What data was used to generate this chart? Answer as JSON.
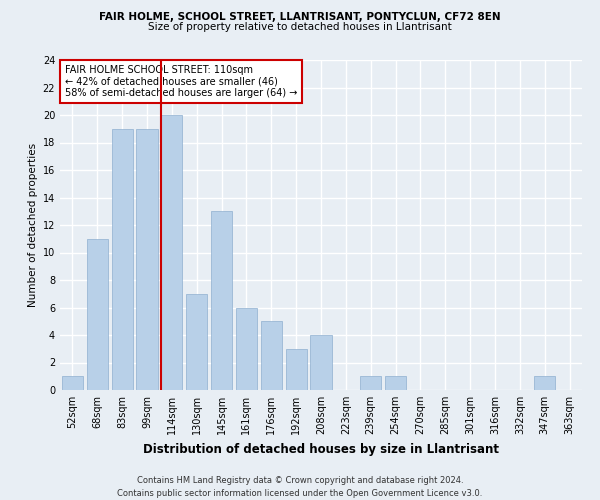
{
  "title_line1": "FAIR HOLME, SCHOOL STREET, LLANTRISANT, PONTYCLUN, CF72 8EN",
  "title_line2": "Size of property relative to detached houses in Llantrisant",
  "xlabel": "Distribution of detached houses by size in Llantrisant",
  "ylabel": "Number of detached properties",
  "categories": [
    "52sqm",
    "68sqm",
    "83sqm",
    "99sqm",
    "114sqm",
    "130sqm",
    "145sqm",
    "161sqm",
    "176sqm",
    "192sqm",
    "208sqm",
    "223sqm",
    "239sqm",
    "254sqm",
    "270sqm",
    "285sqm",
    "301sqm",
    "316sqm",
    "332sqm",
    "347sqm",
    "363sqm"
  ],
  "values": [
    1,
    11,
    19,
    19,
    20,
    7,
    13,
    6,
    5,
    3,
    4,
    0,
    1,
    1,
    0,
    0,
    0,
    0,
    0,
    1,
    0
  ],
  "bar_color": "#b8d0e8",
  "bar_edge_color": "#8fb0d0",
  "highlight_color": "#cc0000",
  "highlight_index": 4,
  "annotation_title": "FAIR HOLME SCHOOL STREET: 110sqm",
  "annotation_line2": "← 42% of detached houses are smaller (46)",
  "annotation_line3": "58% of semi-detached houses are larger (64) →",
  "annotation_box_color": "#ffffff",
  "annotation_box_edge": "#cc0000",
  "ylim": [
    0,
    24
  ],
  "yticks": [
    0,
    2,
    4,
    6,
    8,
    10,
    12,
    14,
    16,
    18,
    20,
    22,
    24
  ],
  "footer_line1": "Contains HM Land Registry data © Crown copyright and database right 2024.",
  "footer_line2": "Contains public sector information licensed under the Open Government Licence v3.0.",
  "bg_color": "#e8eef4",
  "grid_color": "#ffffff",
  "title1_fontsize": 7.5,
  "title2_fontsize": 7.5,
  "ylabel_fontsize": 7.5,
  "xlabel_fontsize": 8.5,
  "tick_fontsize": 7.0,
  "ann_fontsize": 7.0,
  "footer_fontsize": 6.0
}
